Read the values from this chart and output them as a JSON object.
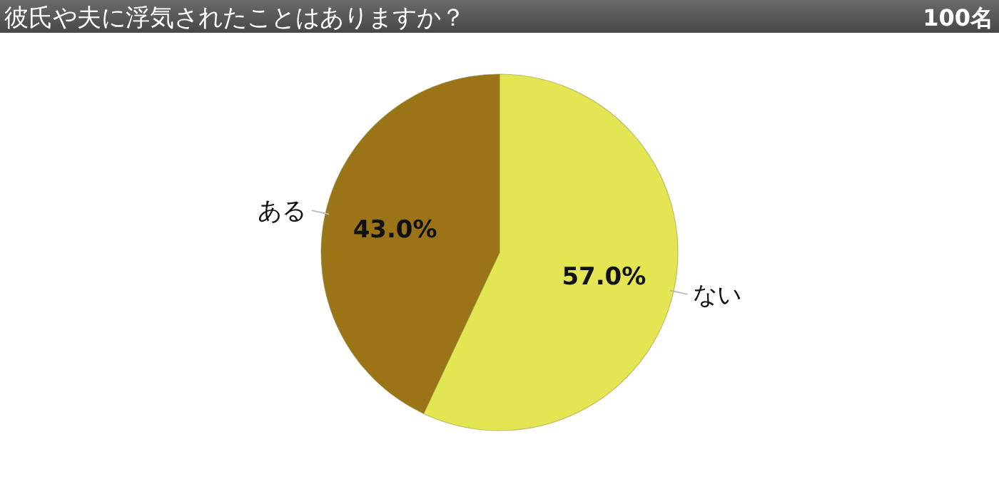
{
  "chart_data": {
    "type": "pie",
    "title": "彼氏や夫に浮気されたことはありますか？",
    "subtitle": "100名",
    "categories": [
      "ない",
      "ある"
    ],
    "values": [
      57.0,
      43.0
    ],
    "value_labels": [
      "57.0%",
      "43.0%"
    ],
    "colors": [
      "#e3e552",
      "#9a7416"
    ]
  }
}
